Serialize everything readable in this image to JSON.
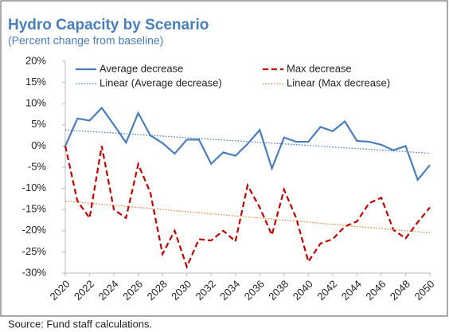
{
  "chart_data": {
    "type": "line",
    "title": "Hydro Capacity by Scenario",
    "subtitle": "(Percent change from baseline)",
    "source": "Source: Fund staff calculations.",
    "x": [
      2020,
      2021,
      2022,
      2023,
      2024,
      2025,
      2026,
      2027,
      2028,
      2029,
      2030,
      2031,
      2032,
      2033,
      2034,
      2035,
      2036,
      2037,
      2038,
      2039,
      2040,
      2041,
      2042,
      2043,
      2044,
      2045,
      2046,
      2047,
      2048,
      2049,
      2050
    ],
    "series": [
      {
        "name": "Average decrease",
        "color": "#4a7ebb",
        "line_style": "solid",
        "values": [
          0,
          6.5,
          6,
          9,
          5,
          0.8,
          7.8,
          2.5,
          0.7,
          -1.8,
          1.5,
          1.5,
          -4.2,
          -1.5,
          -2.3,
          0.5,
          3.8,
          -5.3,
          2,
          1,
          1,
          4.5,
          3.5,
          5.8,
          1.2,
          1,
          0.3,
          -1,
          0,
          -8,
          -4.5
        ]
      },
      {
        "name": "Max decrease",
        "color": "#c00000",
        "line_style": "dashed",
        "values": [
          0,
          -13,
          -17,
          0,
          -15,
          -17,
          -4.3,
          -11,
          -25.5,
          -20,
          -28.5,
          -22,
          -22.3,
          -20,
          -22.5,
          -9.3,
          -14.5,
          -21,
          -10.3,
          -17,
          -27.3,
          -23,
          -22,
          -19,
          -17.8,
          -13.5,
          -12.2,
          -19.8,
          -21.8,
          -18,
          -14.5
        ]
      },
      {
        "name": "Linear (Average decrease)",
        "color": "#4472c4",
        "line_style": "dotted",
        "x": [
          2020,
          2050
        ],
        "values": [
          3.8,
          -1.7
        ]
      },
      {
        "name": "Linear (Max decrease)",
        "color": "#ed7d31",
        "line_style": "dotted",
        "x": [
          2020,
          2050
        ],
        "values": [
          -13,
          -20.5
        ]
      }
    ],
    "xlim": [
      2020,
      2050
    ],
    "xticks": [
      2020,
      2022,
      2024,
      2026,
      2028,
      2030,
      2032,
      2034,
      2036,
      2038,
      2040,
      2042,
      2044,
      2046,
      2048,
      2050
    ],
    "ylim": [
      -30,
      20
    ],
    "yticks": [
      {
        "value": -30,
        "label": "-30%"
      },
      {
        "value": -25,
        "label": "-25%"
      },
      {
        "value": -20,
        "label": "-20%"
      },
      {
        "value": -15,
        "label": "-15%"
      },
      {
        "value": -10,
        "label": "-10%"
      },
      {
        "value": -5,
        "label": "-5%"
      },
      {
        "value": 0,
        "label": "0%"
      },
      {
        "value": 5,
        "label": "5%"
      },
      {
        "value": 10,
        "label": "10%"
      },
      {
        "value": 15,
        "label": "15%"
      },
      {
        "value": 20,
        "label": "20%"
      }
    ],
    "grid": false,
    "legend": "top"
  }
}
